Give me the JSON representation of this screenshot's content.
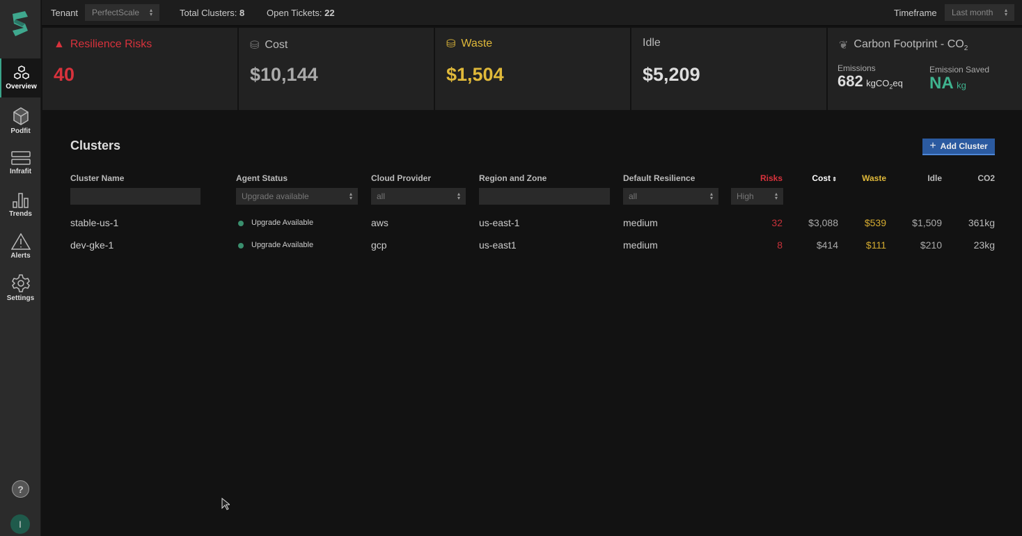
{
  "sidebar": {
    "items": [
      {
        "label": "Overview",
        "icon": "cubes-icon"
      },
      {
        "label": "Podfit",
        "icon": "cube-icon"
      },
      {
        "label": "Infrafit",
        "icon": "server-icon"
      },
      {
        "label": "Trends",
        "icon": "chart-icon"
      },
      {
        "label": "Alerts",
        "icon": "warning-icon"
      },
      {
        "label": "Settings",
        "icon": "gear-icon"
      }
    ],
    "help": "?",
    "avatar": "I"
  },
  "topbar": {
    "tenant_label": "Tenant",
    "tenant_value": "PerfectScale",
    "total_clusters_label": "Total Clusters:",
    "total_clusters": "8",
    "open_tickets_label": "Open Tickets:",
    "open_tickets": "22",
    "timeframe_label": "Timeframe",
    "timeframe_value": "Last month"
  },
  "cards": {
    "risks": {
      "title": "Resilience Risks",
      "value": "40",
      "color": "#d8323c"
    },
    "cost": {
      "title": "Cost",
      "value": "$10,144"
    },
    "waste": {
      "title": "Waste",
      "value": "$1,504",
      "color": "#e0b93a"
    },
    "idle": {
      "title": "Idle",
      "value": "$5,209"
    },
    "carbon": {
      "title": "Carbon Footprint - CO",
      "title_sub": "2",
      "emissions_label": "Emissions",
      "emissions_value": "682",
      "emissions_unit_a": "kgCO",
      "emissions_unit_sub": "2",
      "emissions_unit_b": "eq",
      "saved_label": "Emission Saved",
      "saved_value": "NA",
      "saved_unit": "kg",
      "accent": "#3fb38f"
    }
  },
  "clusters": {
    "title": "Clusters",
    "add_button": "Add Cluster",
    "columns": [
      "Cluster Name",
      "Agent Status",
      "Cloud Provider",
      "Region and Zone",
      "Default Resilience",
      "Risks",
      "Cost",
      "Waste",
      "Idle",
      "CO2"
    ],
    "filters": {
      "cluster_name": "",
      "agent_status": "Upgrade available",
      "cloud_provider": "all",
      "region": "",
      "default_resilience": "all",
      "risks": "High"
    },
    "rows": [
      {
        "name": "stable-us-1",
        "status": "Upgrade Available",
        "provider": "aws",
        "region": "us-east-1",
        "resilience": "medium",
        "risks": "32",
        "cost": "$3,088",
        "waste": "$539",
        "idle": "$1,509",
        "co2": "361kg"
      },
      {
        "name": "dev-gke-1",
        "status": "Upgrade Available",
        "provider": "gcp",
        "region": "us-east1",
        "resilience": "medium",
        "risks": "8",
        "cost": "$414",
        "waste": "$111",
        "idle": "$210",
        "co2": "23kg"
      }
    ]
  }
}
